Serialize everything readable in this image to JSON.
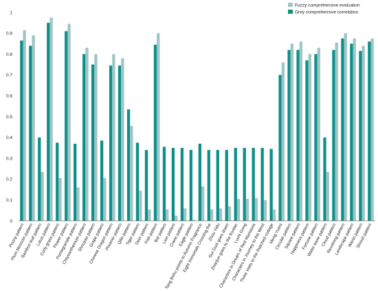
{
  "chart_data": {
    "type": "bar",
    "title": "",
    "xlabel": "",
    "ylabel": "",
    "ylim": [
      0,
      1
    ],
    "yticks": [
      "0",
      "0.1",
      "0.2",
      "0.3",
      "0.4",
      "0.5",
      "0.6",
      "0.7",
      "0.8",
      "0.9",
      "1"
    ],
    "grid": false,
    "legend_position": "top-right",
    "colors": {
      "fuzzy": "#9fc5c5",
      "grey": "#0f8f8a"
    },
    "categories": [
      "Peony pattern",
      "Plum blossom pattern",
      "Bamboo leaf pattern",
      "Lotus pattern",
      "Curly grass pattern",
      "Flower pattern",
      "Pomegranate pattern",
      "Chrysanthemum pattern",
      "Shouyao pattern",
      "Grape pattern",
      "Chinese Dragon pattern",
      "Phoenix pattern",
      "Qilin pattern",
      "Tiger pattern",
      "Deer pattern",
      "Fish pattern",
      "Bat pattern",
      "Lion pattern",
      "Crane pattern",
      "Eagle pattern",
      "Tang Bohu points to Autumn Fragrance",
      "Eight Immortals Crossing the",
      "Zhou Yafu",
      "Gui Guzi goes down",
      "Zhaojun goes to the frontier",
      "Luchi Gong",
      "Characters in Dream of Red Mansions",
      "Characters in Journey to the West",
      "Three visits to the thatched cottage",
      "Meng Yueni",
      "Circular pattern",
      "Square pattern",
      "Happiness pattern",
      "Fortune pattern",
      "Water wave pattern",
      "Cloud pattern",
      "Revolving pattern",
      "Landscape pattern",
      "Wanzi pattern",
      "Shouzi pattern"
    ],
    "series": [
      {
        "name": "Fuzzy comprehensive evaluation",
        "values": [
          0.915,
          0.89,
          0.235,
          0.975,
          0.205,
          0.945,
          0.16,
          0.83,
          0.8,
          0.205,
          0.8,
          0.78,
          0.455,
          0.145,
          0.055,
          0.9,
          0.055,
          0.025,
          0.06,
          0.005,
          0.165,
          0.055,
          0.06,
          0.07,
          0.105,
          0.105,
          0.11,
          0.1,
          0.055,
          0.76,
          0.85,
          0.86,
          0.8,
          0.83,
          0.235,
          0.855,
          0.9,
          0.875,
          0.84,
          0.875
        ]
      },
      {
        "name": "Grey comprehensive correlation",
        "values": [
          0.865,
          0.84,
          0.4,
          0.95,
          0.375,
          0.91,
          0.37,
          0.8,
          0.75,
          0.385,
          0.745,
          0.745,
          0.535,
          0.375,
          0.34,
          0.845,
          0.355,
          0.35,
          0.35,
          0.34,
          0.37,
          0.34,
          0.34,
          0.34,
          0.35,
          0.35,
          0.35,
          0.35,
          0.345,
          0.7,
          0.82,
          0.82,
          0.77,
          0.8,
          0.4,
          0.82,
          0.875,
          0.85,
          0.815,
          0.86
        ]
      }
    ]
  }
}
